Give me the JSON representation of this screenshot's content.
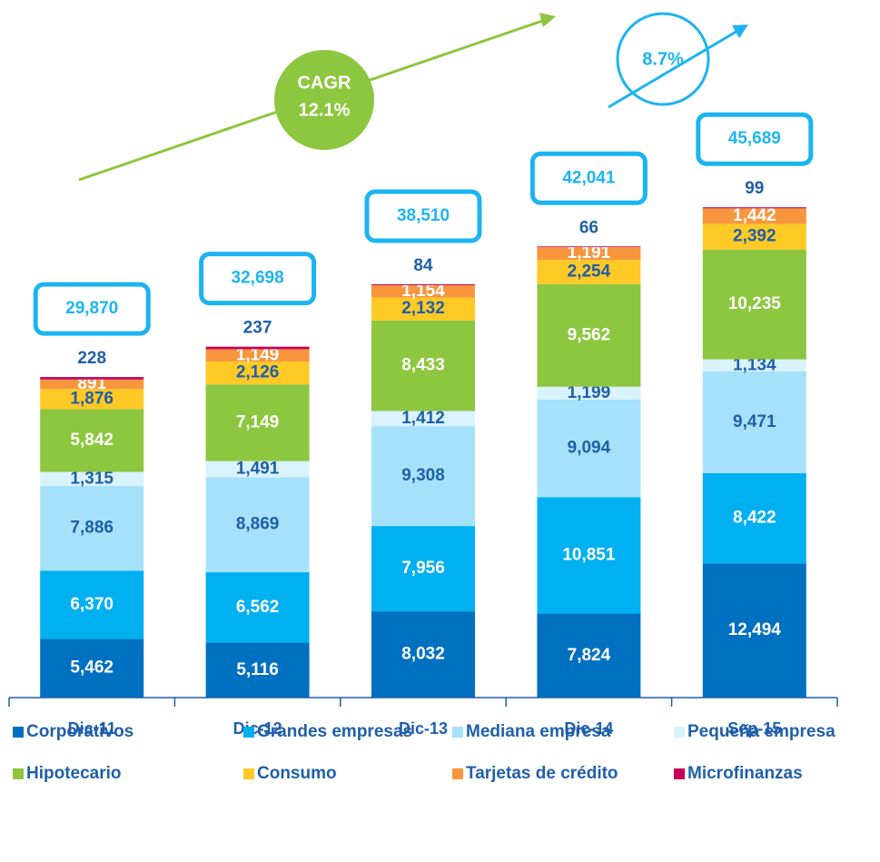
{
  "chart_data": {
    "type": "stacked_bar",
    "categories": [
      "Dic-11",
      "Dic-12",
      "Dic-13",
      "Dic-14",
      "Sep-15"
    ],
    "series": [
      {
        "name": "Corporativos",
        "color": "#0070c0",
        "values": [
          5462,
          5116,
          8032,
          7824,
          12494
        ],
        "value_labels": [
          "5,462",
          "5,116",
          "8,032",
          "7,824",
          "12,494"
        ]
      },
      {
        "name": "Grandes empresas",
        "color": "#00b0f0",
        "values": [
          6370,
          6562,
          7956,
          10851,
          8422
        ],
        "value_labels": [
          "6,370",
          "6,562",
          "7,956",
          "10,851",
          "8,422"
        ]
      },
      {
        "name": "Mediana empresa",
        "color": "#a6e1fa",
        "values": [
          7886,
          8869,
          9308,
          9094,
          9471
        ],
        "value_labels": [
          "7,886",
          "8,869",
          "9,308",
          "9,094",
          "9,471"
        ]
      },
      {
        "name": "Pequeña empresa",
        "color": "#d9f3fd",
        "values": [
          1315,
          1491,
          1412,
          1199,
          1134
        ],
        "value_labels": [
          "1,315",
          "1,491",
          "1,412",
          "1,199",
          "1,134"
        ]
      },
      {
        "name": "Hipotecario",
        "color": "#8dc63f",
        "values": [
          5842,
          7149,
          8433,
          9562,
          10235
        ],
        "value_labels": [
          "5,842",
          "7,149",
          "8,433",
          "9,562",
          "10,235"
        ]
      },
      {
        "name": "Consumo",
        "color": "#ffc926",
        "values": [
          1876,
          2126,
          2132,
          2254,
          2392
        ],
        "value_labels": [
          "1,876",
          "2,126",
          "2,132",
          "2,254",
          "2,392"
        ]
      },
      {
        "name": "Tarjetas de crédito",
        "color": "#f7963c",
        "values": [
          891,
          1149,
          1154,
          1191,
          1442
        ],
        "value_labels": [
          "891",
          "1,149",
          "1,154",
          "1,191",
          "1,442"
        ]
      },
      {
        "name": "Microfinanzas",
        "color": "#c8005a",
        "values": [
          228,
          237,
          84,
          66,
          99
        ]
      }
    ],
    "totals": [
      29870,
      32698,
      38510,
      42041,
      45689
    ],
    "total_labels": [
      "29,870",
      "32,698",
      "38,510",
      "42,041",
      "45,689"
    ],
    "annotations": {
      "cagr": [
        "CAGR",
        "12.1%"
      ],
      "growth": "8.7%"
    },
    "ylim": [
      0,
      54000
    ],
    "legend": "bottom"
  }
}
